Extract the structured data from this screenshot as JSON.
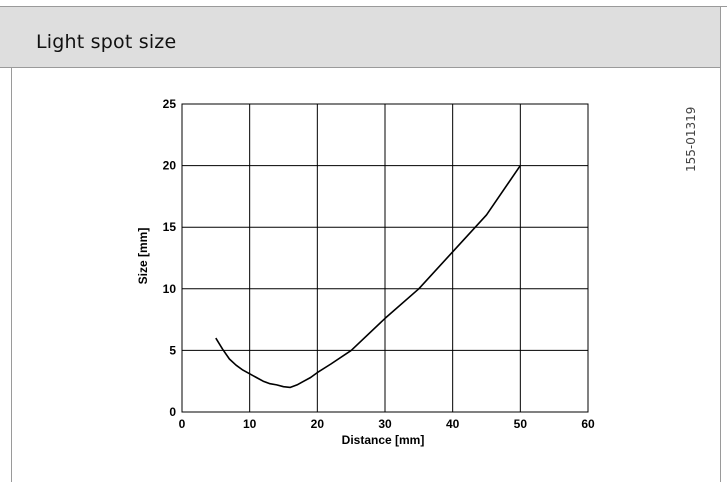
{
  "header": {
    "title": "Light spot size"
  },
  "reference_code": "155-01319",
  "chart_data": {
    "type": "line",
    "title": "",
    "xlabel": "Distance [mm]",
    "ylabel": "Size [mm]",
    "xlim": [
      0,
      60
    ],
    "ylim": [
      0,
      25
    ],
    "x_ticks": [
      0,
      10,
      20,
      30,
      40,
      50,
      60
    ],
    "y_ticks": [
      0,
      5,
      10,
      15,
      20,
      25
    ],
    "grid": true,
    "legend": "none",
    "series": [
      {
        "x": [
          5,
          6,
          7,
          8,
          9,
          10,
          11,
          12,
          13,
          14,
          15,
          16,
          17,
          18,
          19,
          20,
          22,
          25,
          30,
          35,
          40,
          45,
          50
        ],
        "y": [
          6.0,
          5.1,
          4.3,
          3.8,
          3.4,
          3.1,
          2.8,
          2.5,
          2.3,
          2.2,
          2.05,
          2.0,
          2.2,
          2.5,
          2.8,
          3.2,
          3.9,
          5.0,
          7.6,
          10.0,
          13.0,
          16.0,
          20.0
        ]
      }
    ],
    "colors": {
      "line": "#000000",
      "grid": "#000000"
    }
  }
}
